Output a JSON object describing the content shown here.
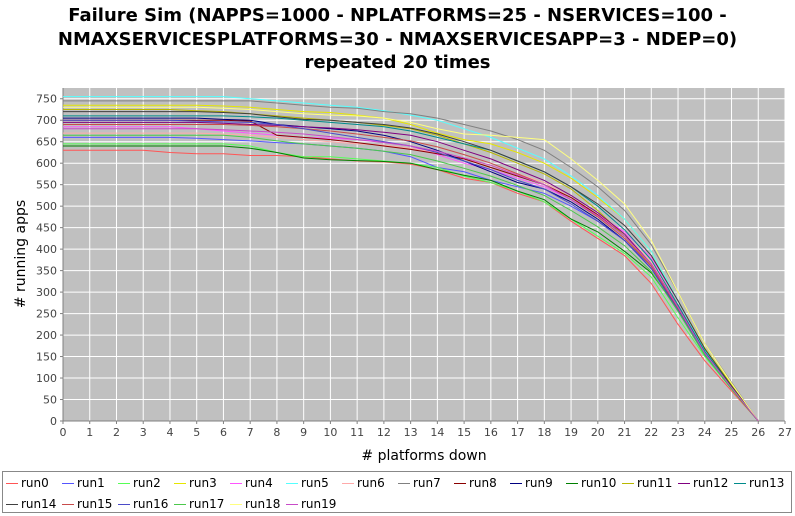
{
  "chart_data": {
    "type": "line",
    "title": [
      "Failure Sim (NAPPS=1000 - NPLATFORMS=25 - NSERVICES=100 -",
      "NMAXSERVICESPLATFORMS=30 - NMAXSERVICESAPP=3 - NDEP=0)",
      "repeated 20 times"
    ],
    "xlabel": "# platforms down",
    "ylabel": "# running apps",
    "xlim": [
      0,
      27
    ],
    "ylim": [
      0,
      775
    ],
    "xticks": [
      0,
      1,
      2,
      3,
      4,
      5,
      6,
      7,
      8,
      9,
      10,
      11,
      12,
      13,
      14,
      15,
      16,
      17,
      18,
      19,
      20,
      21,
      22,
      23,
      24,
      25,
      26,
      27
    ],
    "yticks": [
      0,
      50,
      100,
      150,
      200,
      250,
      300,
      350,
      400,
      450,
      500,
      550,
      600,
      650,
      700,
      750
    ],
    "grid": true,
    "legend_position": "bottom",
    "x": [
      0,
      1,
      2,
      3,
      4,
      5,
      6,
      7,
      8,
      9,
      10,
      11,
      12,
      13,
      14,
      15,
      16,
      17,
      18,
      19,
      20,
      21,
      22,
      23,
      24,
      25,
      26
    ],
    "series": [
      {
        "name": "run0",
        "color": "#ff5555",
        "values": [
          630,
          630,
          630,
          630,
          625,
          622,
          622,
          618,
          618,
          615,
          610,
          605,
          603,
          598,
          585,
          565,
          555,
          530,
          510,
          465,
          425,
          385,
          320,
          225,
          140,
          70,
          0
        ]
      },
      {
        "name": "run1",
        "color": "#5555ff",
        "values": [
          660,
          660,
          660,
          660,
          660,
          658,
          655,
          652,
          648,
          645,
          640,
          635,
          628,
          615,
          590,
          580,
          560,
          545,
          530,
          500,
          465,
          420,
          360,
          270,
          160,
          80,
          0
        ]
      },
      {
        "name": "run2",
        "color": "#55ff55",
        "values": [
          645,
          645,
          645,
          645,
          645,
          645,
          645,
          640,
          625,
          615,
          615,
          610,
          605,
          600,
          590,
          570,
          555,
          535,
          510,
          470,
          430,
          390,
          335,
          240,
          150,
          75,
          0
        ]
      },
      {
        "name": "run3",
        "color": "#e6e600",
        "values": [
          735,
          735,
          735,
          735,
          735,
          735,
          733,
          730,
          725,
          720,
          718,
          712,
          705,
          690,
          670,
          655,
          645,
          625,
          600,
          565,
          520,
          470,
          395,
          280,
          170,
          85,
          0
        ]
      },
      {
        "name": "run4",
        "color": "#ff55ff",
        "values": [
          685,
          685,
          685,
          685,
          685,
          680,
          675,
          670,
          665,
          660,
          658,
          655,
          650,
          640,
          620,
          600,
          585,
          565,
          545,
          515,
          480,
          440,
          380,
          280,
          165,
          80,
          0
        ]
      },
      {
        "name": "run5",
        "color": "#55ffff",
        "values": [
          755,
          755,
          755,
          755,
          755,
          755,
          755,
          750,
          745,
          740,
          735,
          730,
          722,
          712,
          700,
          680,
          660,
          635,
          610,
          570,
          525,
          470,
          395,
          280,
          165,
          80,
          0
        ]
      },
      {
        "name": "run6",
        "color": "#ffaaaa",
        "values": [
          670,
          670,
          670,
          670,
          670,
          670,
          668,
          665,
          660,
          655,
          650,
          645,
          642,
          635,
          625,
          610,
          595,
          575,
          555,
          520,
          480,
          435,
          370,
          270,
          160,
          80,
          0
        ]
      },
      {
        "name": "run7",
        "color": "#808080",
        "values": [
          745,
          745,
          745,
          745,
          745,
          745,
          745,
          745,
          740,
          735,
          730,
          728,
          720,
          715,
          705,
          690,
          675,
          655,
          630,
          590,
          545,
          490,
          410,
          300,
          180,
          90,
          0
        ]
      },
      {
        "name": "run8",
        "color": "#8b0000",
        "values": [
          700,
          700,
          700,
          700,
          700,
          700,
          700,
          698,
          665,
          660,
          655,
          648,
          640,
          632,
          622,
          610,
          590,
          570,
          550,
          520,
          480,
          430,
          365,
          265,
          160,
          80,
          0
        ]
      },
      {
        "name": "run9",
        "color": "#000080",
        "values": [
          705,
          705,
          705,
          705,
          705,
          705,
          702,
          700,
          690,
          685,
          680,
          675,
          665,
          650,
          630,
          605,
          580,
          555,
          540,
          510,
          470,
          420,
          355,
          260,
          155,
          75,
          0
        ]
      },
      {
        "name": "run10",
        "color": "#008000",
        "values": [
          640,
          640,
          640,
          640,
          640,
          640,
          640,
          635,
          625,
          612,
          608,
          606,
          604,
          600,
          585,
          572,
          560,
          535,
          515,
          470,
          440,
          395,
          345,
          260,
          160,
          78,
          0
        ]
      },
      {
        "name": "run11",
        "color": "#b8b800",
        "values": [
          725,
          725,
          725,
          725,
          725,
          722,
          720,
          715,
          710,
          705,
          700,
          695,
          688,
          680,
          665,
          645,
          625,
          600,
          575,
          540,
          490,
          430,
          360,
          265,
          160,
          80,
          0
        ]
      },
      {
        "name": "run12",
        "color": "#800080",
        "values": [
          695,
          695,
          695,
          695,
          695,
          695,
          693,
          690,
          688,
          685,
          682,
          678,
          672,
          665,
          650,
          630,
          610,
          585,
          560,
          525,
          485,
          435,
          365,
          265,
          158,
          78,
          0
        ]
      },
      {
        "name": "run13",
        "color": "#008b8b",
        "values": [
          710,
          710,
          710,
          710,
          710,
          710,
          710,
          708,
          705,
          700,
          695,
          690,
          685,
          675,
          660,
          645,
          630,
          605,
          580,
          545,
          500,
          445,
          375,
          270,
          162,
          80,
          0
        ]
      },
      {
        "name": "run14",
        "color": "#404040",
        "values": [
          720,
          720,
          720,
          720,
          720,
          720,
          718,
          715,
          708,
          702,
          700,
          695,
          690,
          682,
          668,
          650,
          630,
          605,
          580,
          545,
          505,
          455,
          385,
          280,
          168,
          82,
          0
        ]
      },
      {
        "name": "run15",
        "color": "#c84b4b",
        "values": [
          690,
          690,
          690,
          690,
          690,
          690,
          690,
          688,
          685,
          680,
          675,
          668,
          660,
          652,
          638,
          620,
          600,
          575,
          550,
          515,
          475,
          425,
          360,
          262,
          158,
          78,
          0
        ]
      },
      {
        "name": "run16",
        "color": "#4b4bc8",
        "values": [
          700,
          700,
          700,
          700,
          700,
          698,
          696,
          695,
          690,
          680,
          670,
          660,
          650,
          640,
          625,
          605,
          585,
          560,
          540,
          505,
          465,
          420,
          355,
          258,
          155,
          76,
          0
        ]
      },
      {
        "name": "run17",
        "color": "#4bc84b",
        "values": [
          665,
          665,
          665,
          665,
          665,
          665,
          665,
          660,
          652,
          645,
          640,
          635,
          628,
          620,
          605,
          588,
          570,
          548,
          525,
          490,
          452,
          408,
          348,
          255,
          153,
          75,
          0
        ]
      },
      {
        "name": "run18",
        "color": "#ffff80",
        "values": [
          730,
          730,
          730,
          730,
          730,
          730,
          728,
          725,
          720,
          715,
          712,
          710,
          705,
          695,
          680,
          668,
          665,
          660,
          655,
          610,
          560,
          505,
          420,
          300,
          180,
          88,
          0
        ]
      },
      {
        "name": "run19",
        "color": "#c84bc8",
        "values": [
          680,
          680,
          680,
          680,
          680,
          680,
          678,
          675,
          672,
          668,
          662,
          655,
          648,
          640,
          628,
          612,
          595,
          572,
          550,
          515,
          478,
          430,
          365,
          265,
          158,
          78,
          0
        ]
      }
    ]
  }
}
